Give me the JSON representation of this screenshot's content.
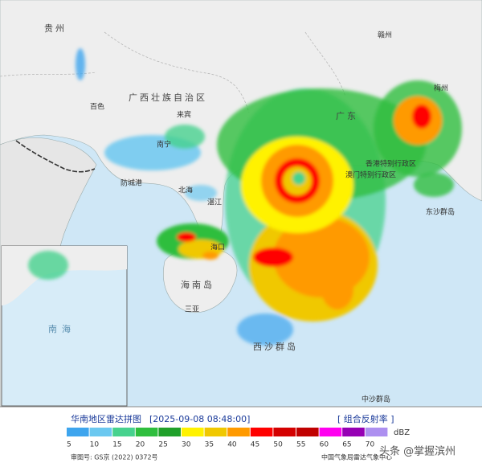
{
  "header": {
    "title": "华南地区雷达拼图",
    "time": "[2025-09-08 08:48:00]",
    "product": "[ 组合反射率 ]",
    "unit": "dBZ"
  },
  "legend": {
    "items": [
      {
        "label": "5",
        "color": "#3ea5ee"
      },
      {
        "label": "10",
        "color": "#6bc8f0"
      },
      {
        "label": "15",
        "color": "#47d28e"
      },
      {
        "label": "20",
        "color": "#2fbe3e"
      },
      {
        "label": "25",
        "color": "#20a02a"
      },
      {
        "label": "30",
        "color": "#fff200"
      },
      {
        "label": "35",
        "color": "#f0c800"
      },
      {
        "label": "40",
        "color": "#ff9a00"
      },
      {
        "label": "45",
        "color": "#ff0000"
      },
      {
        "label": "50",
        "color": "#d40000"
      },
      {
        "label": "55",
        "color": "#c00000"
      },
      {
        "label": "60",
        "color": "#ff00f0"
      },
      {
        "label": "65",
        "color": "#9600b4"
      },
      {
        "label": "70",
        "color": "#ad90f0"
      }
    ]
  },
  "places": [
    "贵州",
    "广西壮族自治区",
    "百色",
    "来宾",
    "南宁",
    "防城港",
    "北海",
    "湛江",
    "海口",
    "海南岛",
    "三亚",
    "广东",
    "赣州",
    "梅州",
    "香港特别行政区",
    "澳门特别行政区",
    "东沙群岛",
    "西沙群岛",
    "中沙群岛",
    "南海"
  ],
  "footer": {
    "approval": "审图号: GS京 (2022) 0372号",
    "agency": "中国气象局雷达气象中心",
    "watermark": "头条 @掌握滨州"
  }
}
